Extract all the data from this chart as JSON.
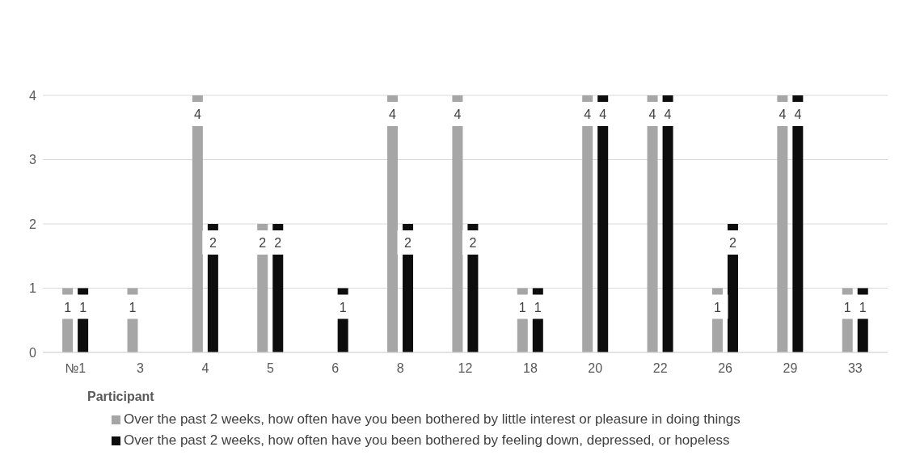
{
  "chart_data": {
    "type": "bar",
    "xlabel": "Participant",
    "categories": [
      "№1",
      "3",
      "4",
      "5",
      "6",
      "8",
      "12",
      "18",
      "20",
      "22",
      "26",
      "29",
      "33"
    ],
    "series": [
      {
        "name": "Over the past 2 weeks, how often have you been bothered by little interest or pleasure in doing things",
        "color": "#a6a6a6",
        "values": [
          1,
          1,
          4,
          2,
          null,
          4,
          4,
          1,
          4,
          4,
          1,
          4,
          1
        ]
      },
      {
        "name": "Over the past 2 weeks, how often have you been bothered by feeling down, depressed, or hopeless",
        "color": "#0d0d0d",
        "values": [
          1,
          null,
          2,
          2,
          1,
          2,
          2,
          1,
          4,
          4,
          2,
          4,
          1
        ]
      }
    ],
    "ylim": [
      0,
      4
    ],
    "yticks": [
      0,
      1,
      2,
      3,
      4
    ],
    "grid": "y",
    "legend": "bottom",
    "data_labels": true
  }
}
